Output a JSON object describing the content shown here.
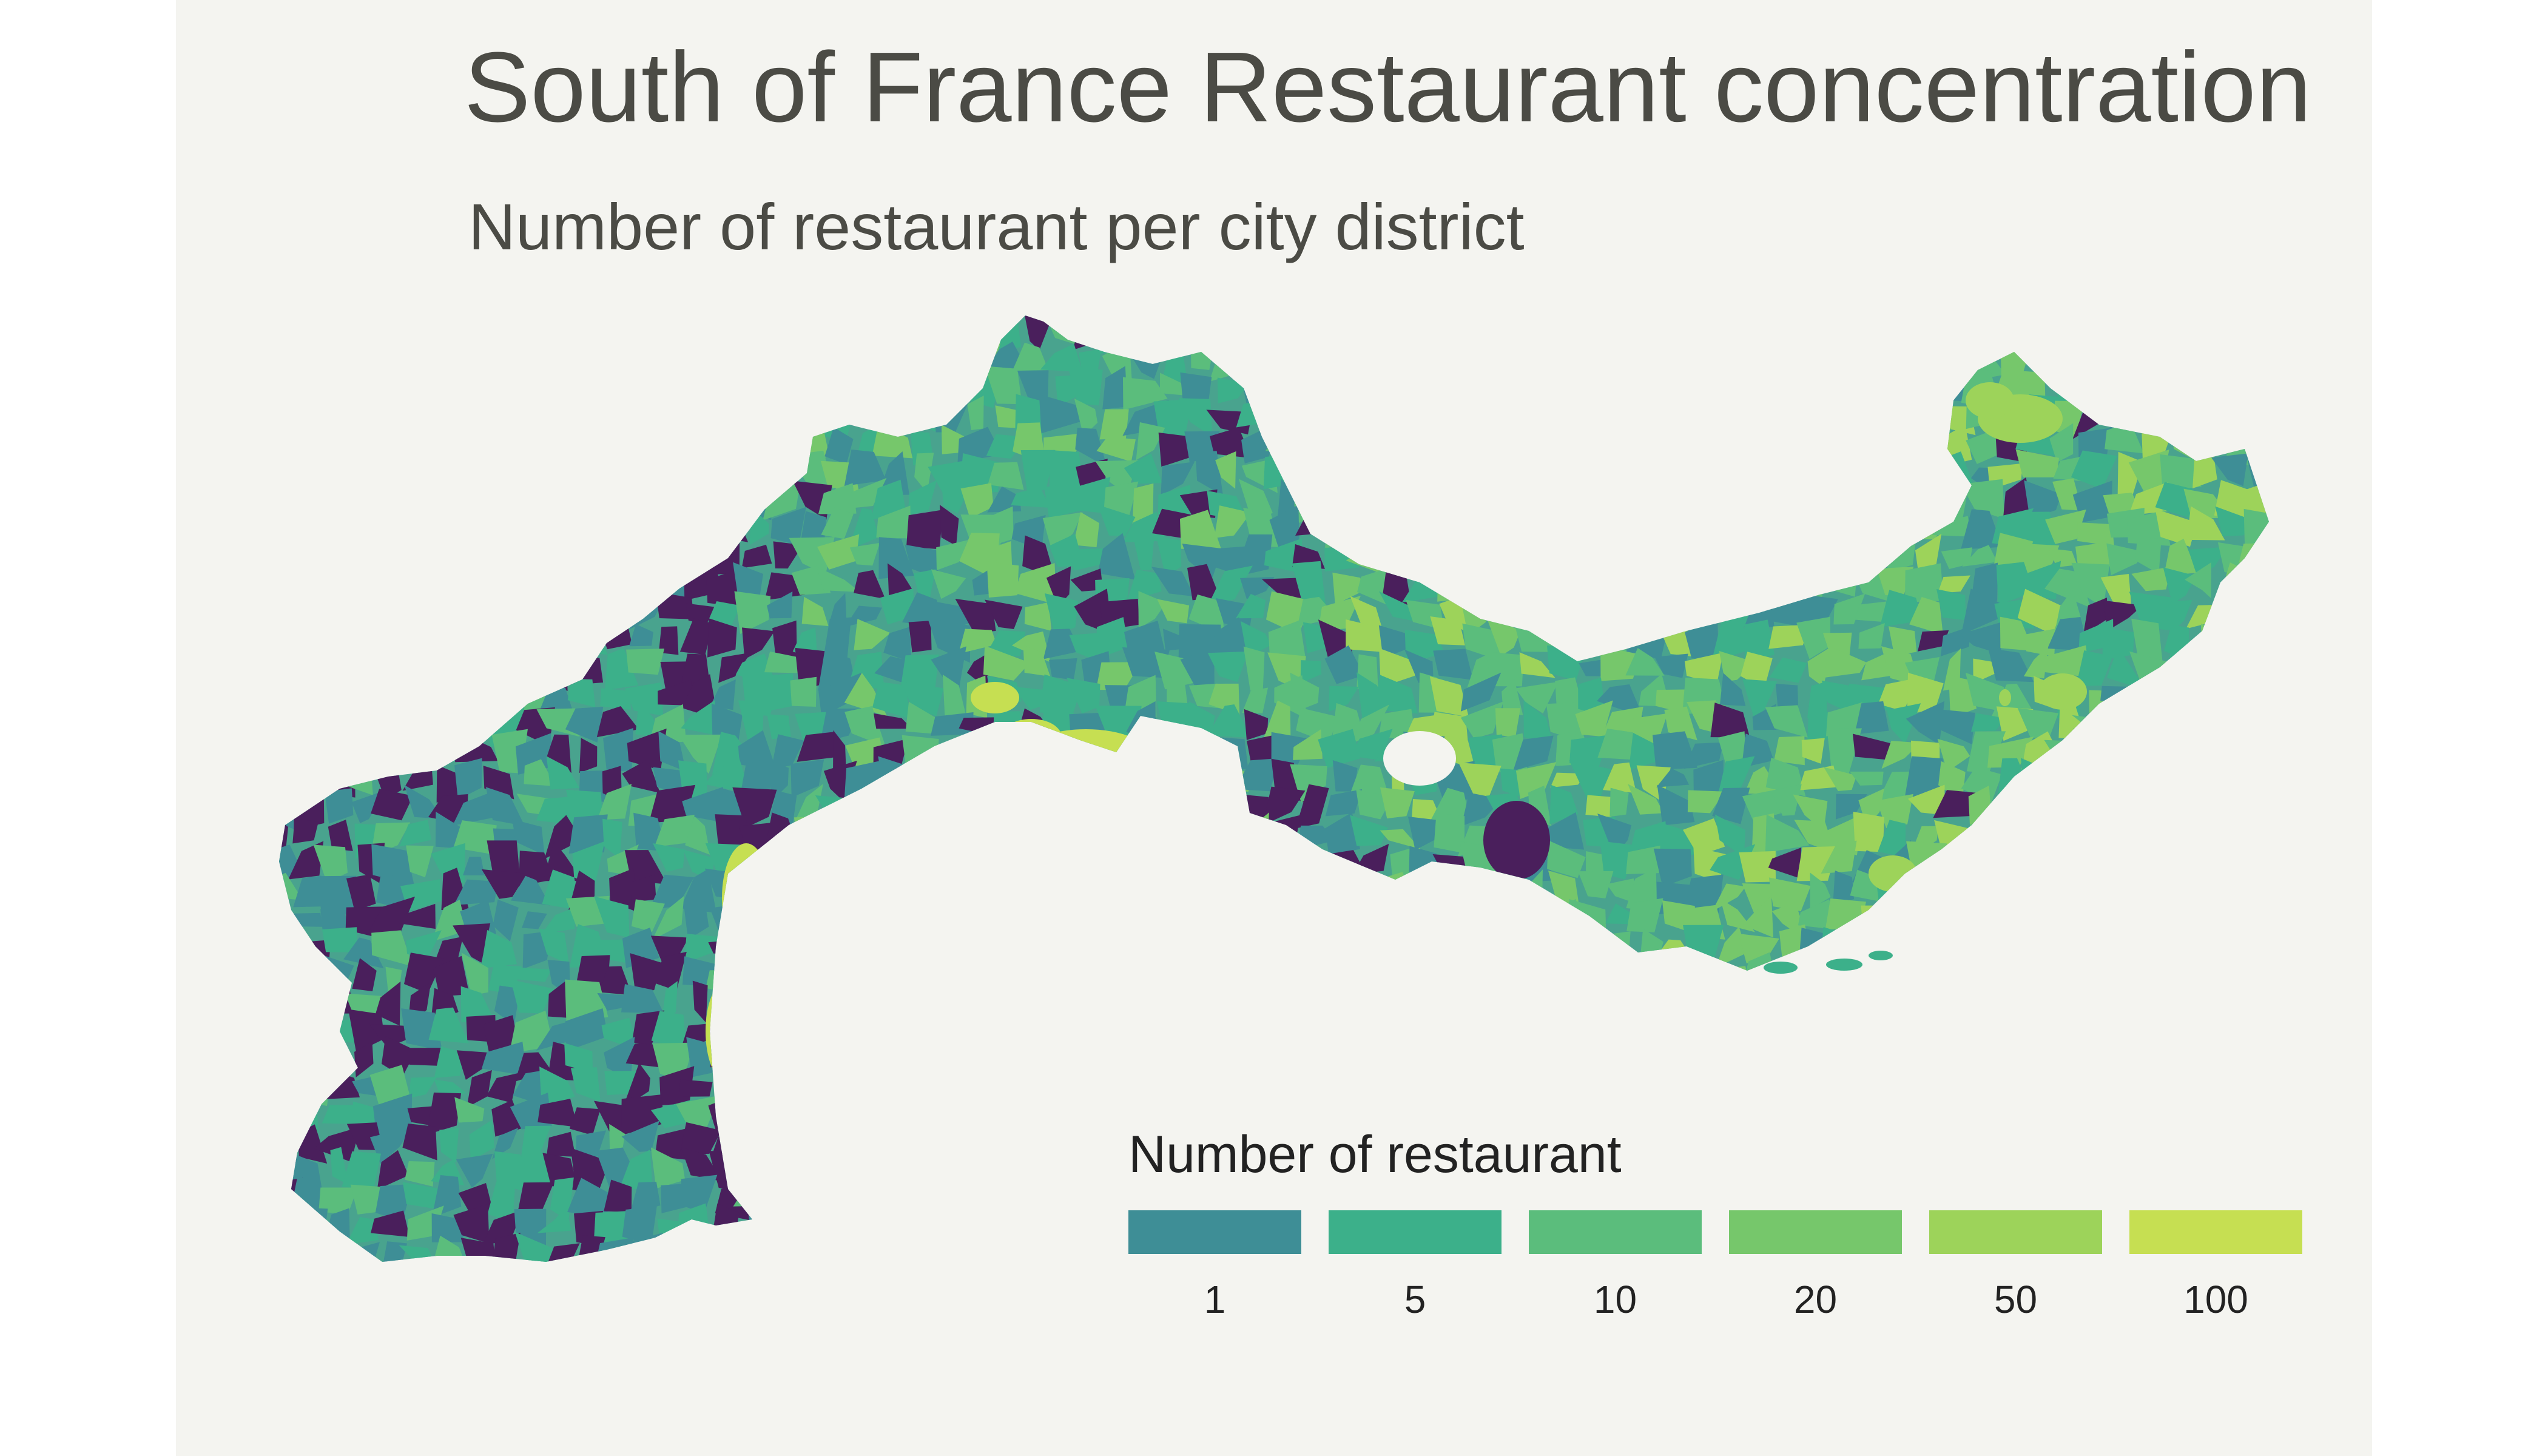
{
  "title": "South of France Restaurant concentration",
  "subtitle": "Number of restaurant per city district",
  "legend": {
    "title": "Number of restaurant",
    "bins": [
      {
        "label": "1",
        "color": "#3e8e96"
      },
      {
        "label": "5",
        "color": "#3cb08a"
      },
      {
        "label": "10",
        "color": "#5bbd7c"
      },
      {
        "label": "20",
        "color": "#76c76b"
      },
      {
        "label": "50",
        "color": "#9dd35a"
      },
      {
        "label": "100",
        "color": "#c6df52"
      }
    ],
    "no_restaurant_color": "#4a1f5c"
  },
  "colors": {
    "background": "#f4f4f0",
    "title_text": "#4b4b45"
  }
}
